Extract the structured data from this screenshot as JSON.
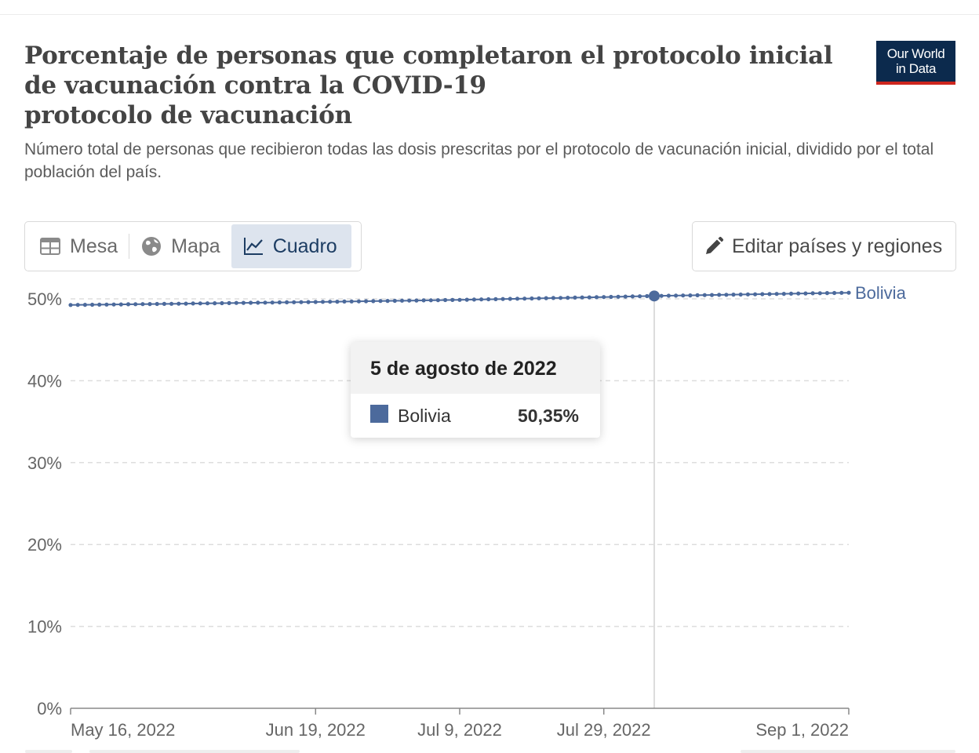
{
  "header": {
    "title": "Porcentaje de personas que completaron el protocolo inicial de vacunación contra la COVID-19\nprotocolo de vacunación",
    "subtitle": "Número total de personas que recibieron todas las dosis prescritas por el protocolo de vacunación inicial, dividido por el total\npoblación del país.",
    "logo_line1": "Our World",
    "logo_line2": "in Data"
  },
  "tabs": [
    {
      "label": "Mesa",
      "icon": "table-icon",
      "active": false
    },
    {
      "label": "Mapa",
      "icon": "globe-icon",
      "active": false
    },
    {
      "label": "Cuadro",
      "icon": "line-chart-icon",
      "active": true
    }
  ],
  "edit_button": {
    "label": "Editar países y regiones",
    "icon": "pencil-icon"
  },
  "tooltip": {
    "date": "5 de agosto de 2022",
    "series": "Bolivia",
    "value": "50,35%"
  },
  "colors": {
    "series": "#4c6a9c",
    "series_label": "#4c6a9c",
    "grid": "#dddddd",
    "axis": "#888888",
    "logo_bg": "#0c2a4d",
    "logo_accent": "#ce261e",
    "active_tab_bg": "#dde4ee"
  },
  "chart_data": {
    "type": "line",
    "x_type": "date",
    "xlim": [
      "2022-05-16",
      "2022-09-01"
    ],
    "ylim": [
      0,
      50
    ],
    "y_ticks": [
      0,
      10,
      20,
      30,
      40,
      50
    ],
    "y_tick_labels": [
      "0%",
      "10%",
      "20%",
      "30%",
      "40%",
      "50%"
    ],
    "x_ticks": [
      "2022-05-16",
      "2022-06-19",
      "2022-07-09",
      "2022-07-29",
      "2022-09-01"
    ],
    "x_tick_labels": [
      "May 16, 2022",
      "Jun 19, 2022",
      "Jul 9, 2022",
      "Jul 29, 2022",
      "Sep 1, 2022"
    ],
    "grid": "horizontal dashed",
    "legend": "inline-right",
    "hover_date": "2022-08-05",
    "series": [
      {
        "name": "Bolivia",
        "points": [
          [
            "2022-05-16",
            49.25
          ],
          [
            "2022-06-01",
            49.42
          ],
          [
            "2022-06-19",
            49.62
          ],
          [
            "2022-07-09",
            49.88
          ],
          [
            "2022-07-29",
            50.22
          ],
          [
            "2022-08-05",
            50.35
          ],
          [
            "2022-08-15",
            50.5
          ],
          [
            "2022-09-01",
            50.75
          ]
        ]
      }
    ]
  }
}
